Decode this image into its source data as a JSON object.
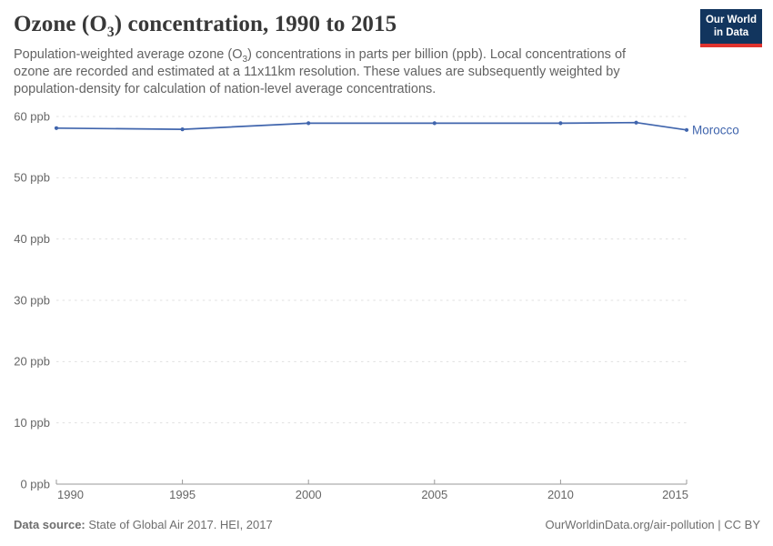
{
  "header": {
    "title": {
      "pre": "Ozone (O",
      "sub": "3",
      "post": ") concentration, 1990 to 2015"
    },
    "subtitle": {
      "pre": "Population-weighted average ozone (O",
      "sub": "3",
      "post": ") concentrations in parts per billion (ppb). Local concentrations of ozone are recorded and estimated at a 11x11km resolution. These values are subsequently weighted by population-density for calculation of nation-level average concentrations."
    },
    "logo": {
      "line1": "Our World",
      "line2": "in Data"
    }
  },
  "chart_data": {
    "type": "line",
    "title": "Ozone (O3) concentration, 1990 to 2015",
    "unit": "ppb",
    "xlim": [
      1990,
      2015
    ],
    "ylim": [
      0,
      60
    ],
    "xticks": [
      1990,
      1995,
      2000,
      2005,
      2010,
      2015
    ],
    "yticks": [
      0,
      10,
      20,
      30,
      40,
      50,
      60
    ],
    "grid": "horizontal-dashed",
    "legend_position": "line-end-label",
    "series": [
      {
        "name": "Morocco",
        "color": "#4065ad",
        "x": [
          1990,
          1995,
          2000,
          2005,
          2010,
          2013,
          2015
        ],
        "values": [
          58.1,
          57.9,
          58.9,
          58.9,
          58.9,
          59.0,
          57.8
        ]
      }
    ]
  },
  "footer": {
    "source_label": "Data source:",
    "source_text": "State of Global Air 2017. HEI, 2017",
    "right_text": "OurWorldinData.org/air-pollution | CC BY"
  },
  "colors": {
    "accent_line": "#4065ad",
    "logo_bg": "#12355e",
    "logo_bar": "#e0332e",
    "grid": "#e0e0e0",
    "axis": "#999999",
    "tick_text": "#666666"
  }
}
